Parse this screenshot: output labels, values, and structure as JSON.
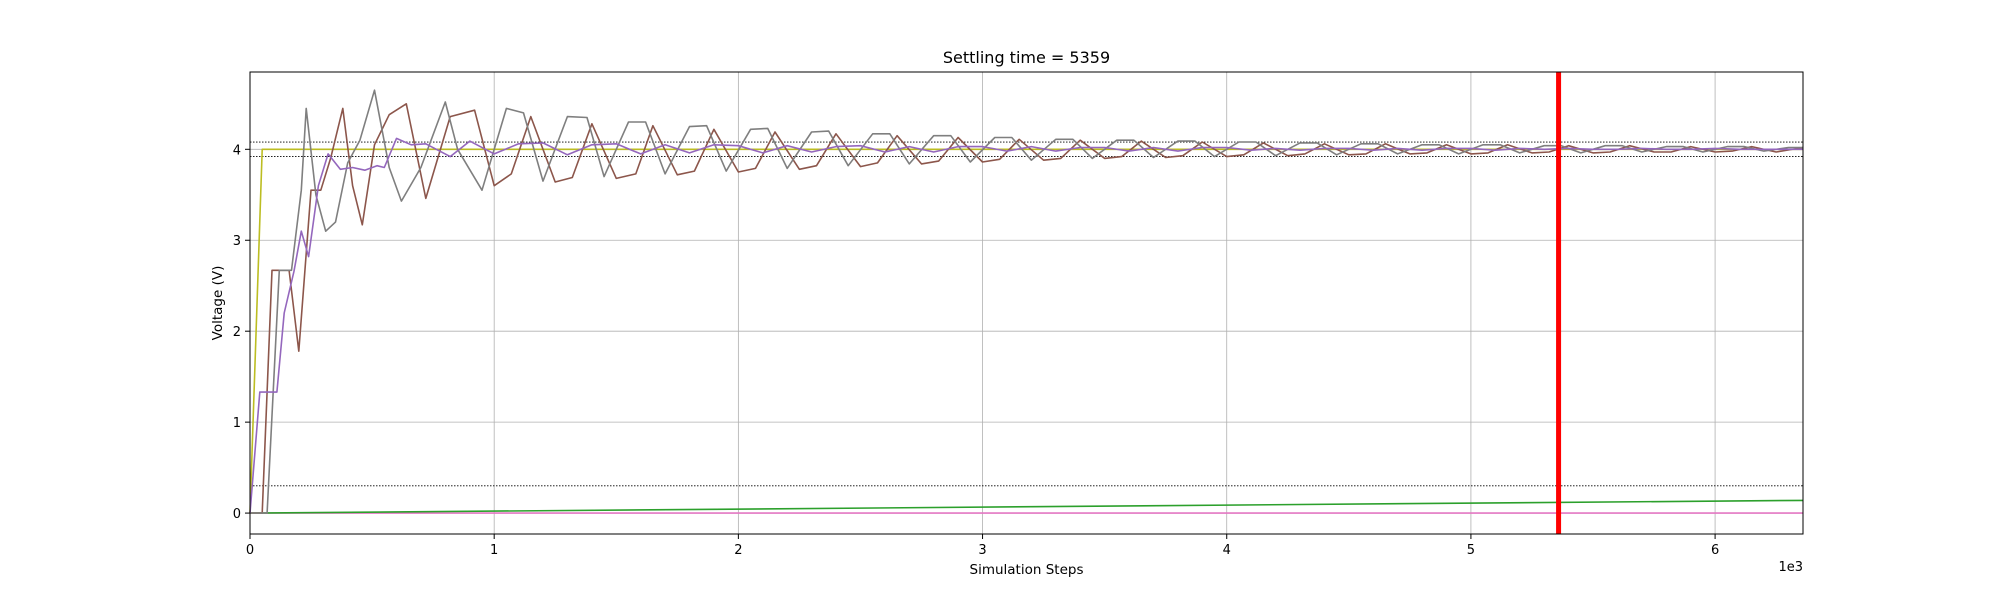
{
  "chart_data": {
    "type": "line",
    "title": "Settling time = 5359",
    "xlabel": "Simulation Steps",
    "ylabel": "Voltage (V)",
    "x_offset_label": "1e3",
    "xlim": [
      0,
      6.36
    ],
    "ylim": [
      -0.23,
      4.85
    ],
    "x_ticks": [
      0,
      1,
      2,
      3,
      4,
      5,
      6
    ],
    "x_tick_labels": [
      "0",
      "1",
      "2",
      "3",
      "4",
      "5",
      "6"
    ],
    "y_ticks": [
      0,
      1,
      2,
      3,
      4
    ],
    "y_tick_labels": [
      "0",
      "1",
      "2",
      "3",
      "4"
    ],
    "grid": true,
    "colors": {
      "olive": "#bcbd22",
      "brown": "#8c564b",
      "gray": "#7f7f7f",
      "purple": "#9467bd",
      "green": "#2ca02c",
      "pink": "#e377c2",
      "marker": "#ff0000",
      "reference": "#000000"
    },
    "settling_marker_x": 5.359,
    "reference_lines": [
      4.08,
      3.92,
      0.3
    ],
    "series": [
      {
        "color": "#bcbd22",
        "x": [
          0,
          0.05,
          6.36
        ],
        "y": [
          0,
          4.0,
          4.0
        ]
      },
      {
        "color": "#e377c2",
        "x": [
          0,
          6.36
        ],
        "y": [
          0,
          0
        ]
      },
      {
        "color": "#2ca02c",
        "x": [
          0,
          6.36
        ],
        "y": [
          0,
          0.14
        ]
      },
      {
        "color": "#8c564b",
        "x": [
          0,
          0.05,
          0.09,
          0.12,
          0.16,
          0.2,
          0.25,
          0.29,
          0.33,
          0.38,
          0.42,
          0.46,
          0.51,
          0.57,
          0.64,
          0.72,
          0.82,
          0.92,
          1.0,
          1.07,
          1.15,
          1.25,
          1.32,
          1.4,
          1.5,
          1.58,
          1.65,
          1.75,
          1.82,
          1.9,
          2.0,
          2.07,
          2.15,
          2.25,
          2.32,
          2.4,
          2.5,
          2.57,
          2.65,
          2.75,
          2.82,
          2.9,
          3.0,
          3.07,
          3.15,
          3.25,
          3.32,
          3.4,
          3.5,
          3.57,
          3.65,
          3.75,
          3.82,
          3.9,
          4.0,
          4.07,
          4.15,
          4.25,
          4.32,
          4.4,
          4.5,
          4.57,
          4.65,
          4.75,
          4.82,
          4.9,
          5.0,
          5.07,
          5.15,
          5.25,
          5.32,
          5.4,
          5.5,
          5.57,
          5.65,
          5.75,
          5.82,
          5.9,
          6.0,
          6.07,
          6.15,
          6.25,
          6.36
        ],
        "y": [
          0,
          0,
          2.67,
          2.67,
          2.67,
          1.78,
          3.55,
          3.55,
          3.9,
          4.45,
          3.6,
          3.17,
          4.05,
          4.38,
          4.5,
          3.46,
          4.36,
          4.43,
          3.6,
          3.73,
          4.36,
          3.64,
          3.69,
          4.28,
          3.68,
          3.73,
          4.26,
          3.72,
          3.76,
          4.22,
          3.75,
          3.79,
          4.19,
          3.78,
          3.82,
          4.17,
          3.81,
          3.85,
          4.15,
          3.84,
          3.87,
          4.13,
          3.86,
          3.89,
          4.11,
          3.88,
          3.9,
          4.1,
          3.9,
          3.92,
          4.09,
          3.91,
          3.93,
          4.08,
          3.92,
          3.94,
          4.07,
          3.93,
          3.95,
          4.06,
          3.94,
          3.95,
          4.06,
          3.95,
          3.96,
          4.05,
          3.95,
          3.96,
          4.05,
          3.96,
          3.97,
          4.04,
          3.96,
          3.97,
          4.04,
          3.97,
          3.97,
          4.03,
          3.97,
          3.98,
          4.03,
          3.97,
          4.02
        ]
      },
      {
        "color": "#7f7f7f",
        "x": [
          0,
          0.07,
          0.12,
          0.17,
          0.21,
          0.23,
          0.27,
          0.31,
          0.35,
          0.4,
          0.45,
          0.51,
          0.57,
          0.62,
          0.7,
          0.8,
          0.85,
          0.95,
          1.05,
          1.12,
          1.2,
          1.3,
          1.38,
          1.45,
          1.55,
          1.62,
          1.7,
          1.8,
          1.87,
          1.95,
          2.05,
          2.12,
          2.2,
          2.3,
          2.37,
          2.45,
          2.55,
          2.62,
          2.7,
          2.8,
          2.87,
          2.95,
          3.05,
          3.12,
          3.2,
          3.3,
          3.37,
          3.45,
          3.55,
          3.62,
          3.7,
          3.8,
          3.87,
          3.95,
          4.05,
          4.12,
          4.2,
          4.3,
          4.37,
          4.45,
          4.55,
          4.62,
          4.7,
          4.8,
          4.87,
          4.95,
          5.05,
          5.12,
          5.2,
          5.3,
          5.37,
          5.45,
          5.55,
          5.62,
          5.7,
          5.8,
          5.87,
          5.95,
          6.05,
          6.12,
          6.2,
          6.3,
          6.36
        ],
        "y": [
          0,
          0,
          2.67,
          2.67,
          3.55,
          4.45,
          3.5,
          3.1,
          3.2,
          3.85,
          4.1,
          4.65,
          3.8,
          3.43,
          3.8,
          4.52,
          4.0,
          3.55,
          4.45,
          4.4,
          3.65,
          4.36,
          4.35,
          3.7,
          4.3,
          4.3,
          3.73,
          4.25,
          4.26,
          3.76,
          4.22,
          4.23,
          3.79,
          4.19,
          4.2,
          3.82,
          4.17,
          4.17,
          3.84,
          4.15,
          4.15,
          3.86,
          4.13,
          4.13,
          3.88,
          4.11,
          4.11,
          3.9,
          4.1,
          4.1,
          3.91,
          4.09,
          4.09,
          3.92,
          4.08,
          4.08,
          3.93,
          4.07,
          4.07,
          3.94,
          4.06,
          4.06,
          3.95,
          4.05,
          4.05,
          3.95,
          4.05,
          4.05,
          3.96,
          4.04,
          4.04,
          3.96,
          4.04,
          4.04,
          3.97,
          4.03,
          4.03,
          3.97,
          4.03,
          4.03,
          3.98,
          4.02,
          4.02
        ]
      },
      {
        "color": "#9467bd",
        "x": [
          0,
          0.04,
          0.08,
          0.11,
          0.14,
          0.18,
          0.21,
          0.24,
          0.28,
          0.32,
          0.37,
          0.42,
          0.47,
          0.52,
          0.55,
          0.6,
          0.66,
          0.72,
          0.82,
          0.9,
          1.0,
          1.1,
          1.2,
          1.3,
          1.4,
          1.5,
          1.6,
          1.7,
          1.8,
          1.9,
          2.0,
          2.1,
          2.2,
          2.3,
          2.4,
          2.5,
          2.6,
          2.7,
          2.8,
          2.9,
          3.0,
          3.1,
          3.2,
          3.3,
          3.4,
          3.5,
          3.6,
          3.7,
          3.8,
          3.9,
          4.0,
          4.1,
          4.2,
          4.3,
          4.4,
          4.5,
          4.6,
          4.7,
          4.8,
          4.9,
          5.0,
          5.1,
          5.2,
          5.3,
          5.4,
          5.5,
          5.6,
          5.7,
          5.8,
          5.9,
          6.0,
          6.1,
          6.2,
          6.36
        ],
        "y": [
          0,
          1.33,
          1.33,
          1.33,
          2.2,
          2.66,
          3.1,
          2.82,
          3.6,
          3.95,
          3.78,
          3.8,
          3.77,
          3.82,
          3.8,
          4.12,
          4.05,
          4.06,
          3.92,
          4.09,
          3.95,
          4.06,
          4.07,
          3.94,
          4.05,
          4.06,
          3.95,
          4.05,
          3.96,
          4.05,
          4.04,
          3.96,
          4.04,
          3.97,
          4.03,
          4.04,
          3.97,
          4.03,
          3.97,
          4.03,
          4.03,
          3.98,
          4.03,
          3.98,
          4.02,
          4.02,
          3.98,
          4.02,
          3.98,
          4.02,
          4.02,
          3.99,
          4.01,
          3.99,
          4.01,
          4.01,
          3.99,
          4.01,
          3.99,
          4.01,
          4.01,
          3.99,
          4.01,
          4.0,
          4.01,
          4.0,
          4.0,
          4.01,
          4.0,
          4.0,
          4.01,
          4.0,
          4.0,
          4.0
        ]
      }
    ]
  }
}
